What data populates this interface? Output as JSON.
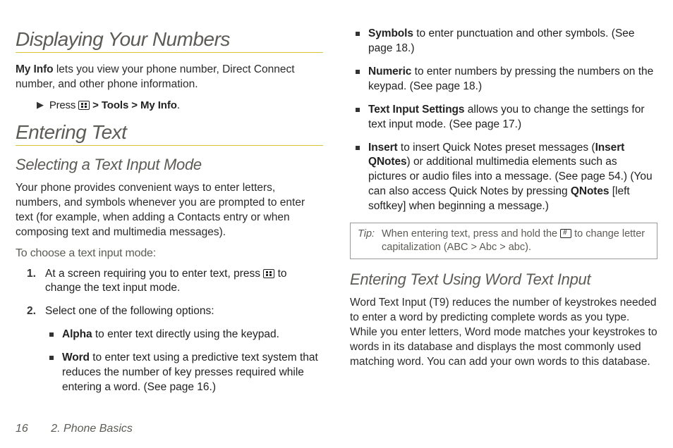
{
  "colors": {
    "heading": "#5d5b55",
    "rule": "#d6c435",
    "text": "#2b2b2b",
    "tip_border": "#999999",
    "background": "#ffffff"
  },
  "left": {
    "h1a": "Displaying Your Numbers",
    "intro_bold": "My Info",
    "intro_rest": " lets you view your phone number, Direct Connect number, and other phone information.",
    "press": "Press ",
    "tools": "Tools",
    "myinfo": "My Info",
    "h1b": "Entering Text",
    "h2a": "Selecting a Text Input Mode",
    "para2": "Your phone provides convenient ways to enter letters, numbers, and symbols whenever you are prompted to enter text (for example, when adding a Contacts entry or when composing text and multimedia messages).",
    "subhead": "To choose a text input mode:",
    "step1a": "At a screen requiring you to enter text, press ",
    "step1b": " to change the text input mode.",
    "step2": "Select one of the following options:",
    "alpha_b": "Alpha",
    "alpha_t": " to enter text directly using the keypad.",
    "word_b": "Word",
    "word_t": " to enter text using a predictive text system that reduces the number of key presses required while entering a word. (See page 16.)"
  },
  "right": {
    "sym_b": "Symbols",
    "sym_t": " to enter punctuation and other symbols. (See page 18.)",
    "num_b": "Numeric",
    "num_t": " to enter numbers by pressing the numbers on the keypad. (See page 18.)",
    "tis_b": "Text Input Settings",
    "tis_t": " allows you to change the settings for text input mode. (See page 17.)",
    "ins_b": "Insert",
    "ins_t1": " to insert Quick Notes preset messages (",
    "ins_b2": "Insert QNotes",
    "ins_t2": ") or additional multimedia elements such as pictures or audio files into a message. (See page 54.) (You can also access Quick Notes by pressing ",
    "ins_b3": "QNotes",
    "ins_t3": " [left softkey] when beginning a message.)",
    "tip_label": "Tip:",
    "tip_a": "When entering text, press and hold the ",
    "tip_b": " to change letter capitalization (ABC > Abc > abc).",
    "h2b": "Entering Text Using Word Text Input",
    "para3": "Word Text Input (T9) reduces the number of keystrokes needed to enter a word by predicting complete words as you type. While you enter letters, Word mode matches your keystrokes to words in its database and displays the most commonly used matching word. You can add your own words to this database."
  },
  "footer": {
    "page": "16",
    "section": "2. Phone Basics"
  }
}
